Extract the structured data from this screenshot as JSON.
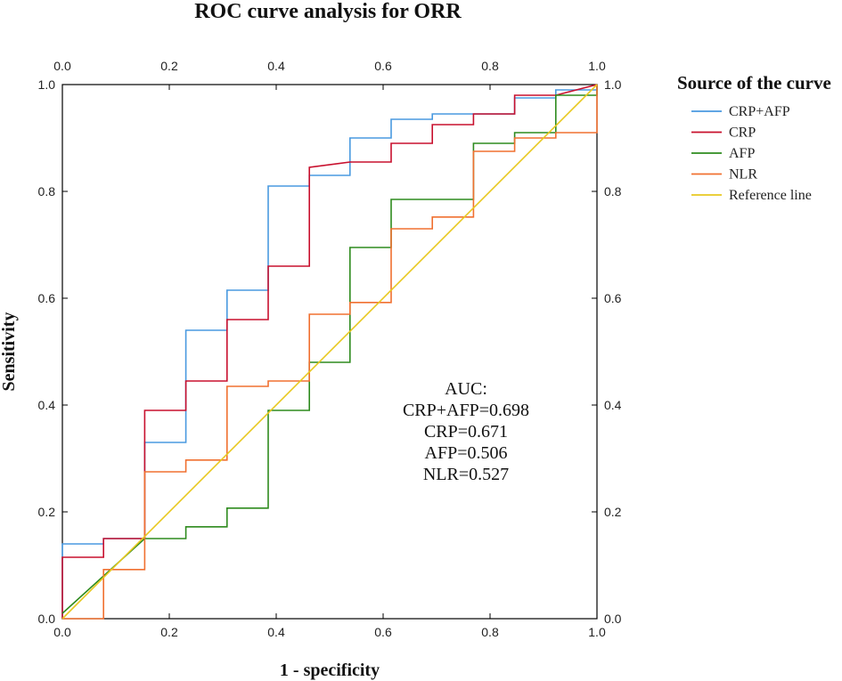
{
  "chart_data": {
    "type": "line",
    "title": "ROC curve analysis for ORR",
    "xlabel": "1 - specificity",
    "ylabel": "Sensitivity",
    "xlim": [
      0,
      1
    ],
    "ylim": [
      0,
      1
    ],
    "x_ticks": [
      "0.0",
      "0.2",
      "0.4",
      "0.6",
      "0.8",
      "1.0"
    ],
    "y_ticks": [
      "0.0",
      "0.2",
      "0.4",
      "0.6",
      "0.8",
      "1.0"
    ],
    "grid": false,
    "legend": {
      "title": "Source of the curve",
      "position": "right"
    },
    "annotation": {
      "lines": [
        "AUC:",
        "CRP+AFP=0.698",
        "CRP=0.671",
        "AFP=0.506",
        "NLR=0.527"
      ]
    },
    "series": [
      {
        "name": "CRP+AFP",
        "color": "#4a9ae0",
        "points": [
          [
            0,
            0
          ],
          [
            0,
            0.14
          ],
          [
            0.077,
            0.14
          ],
          [
            0.077,
            0.15
          ],
          [
            0.154,
            0.15
          ],
          [
            0.154,
            0.33
          ],
          [
            0.231,
            0.33
          ],
          [
            0.231,
            0.54
          ],
          [
            0.308,
            0.54
          ],
          [
            0.308,
            0.615
          ],
          [
            0.385,
            0.615
          ],
          [
            0.385,
            0.81
          ],
          [
            0.462,
            0.81
          ],
          [
            0.462,
            0.83
          ],
          [
            0.538,
            0.83
          ],
          [
            0.538,
            0.9
          ],
          [
            0.615,
            0.9
          ],
          [
            0.615,
            0.935
          ],
          [
            0.692,
            0.935
          ],
          [
            0.692,
            0.945
          ],
          [
            0.769,
            0.945
          ],
          [
            0.846,
            0.945
          ],
          [
            0.846,
            0.975
          ],
          [
            0.923,
            0.975
          ],
          [
            0.923,
            0.99
          ],
          [
            1,
            0.99
          ],
          [
            1,
            1
          ]
        ]
      },
      {
        "name": "CRP",
        "color": "#c8102e",
        "points": [
          [
            0,
            0
          ],
          [
            0,
            0.115
          ],
          [
            0.077,
            0.115
          ],
          [
            0.077,
            0.15
          ],
          [
            0.154,
            0.15
          ],
          [
            0.154,
            0.39
          ],
          [
            0.231,
            0.39
          ],
          [
            0.231,
            0.445
          ],
          [
            0.308,
            0.445
          ],
          [
            0.308,
            0.56
          ],
          [
            0.385,
            0.56
          ],
          [
            0.385,
            0.66
          ],
          [
            0.462,
            0.66
          ],
          [
            0.462,
            0.845
          ],
          [
            0.538,
            0.855
          ],
          [
            0.615,
            0.855
          ],
          [
            0.615,
            0.89
          ],
          [
            0.692,
            0.89
          ],
          [
            0.692,
            0.925
          ],
          [
            0.769,
            0.925
          ],
          [
            0.769,
            0.945
          ],
          [
            0.846,
            0.945
          ],
          [
            0.846,
            0.98
          ],
          [
            0.923,
            0.98
          ],
          [
            1,
            1
          ]
        ]
      },
      {
        "name": "AFP",
        "color": "#2e8b1e",
        "points": [
          [
            0,
            0.01
          ],
          [
            0.154,
            0.15
          ],
          [
            0.231,
            0.15
          ],
          [
            0.231,
            0.172
          ],
          [
            0.308,
            0.172
          ],
          [
            0.308,
            0.207
          ],
          [
            0.385,
            0.207
          ],
          [
            0.385,
            0.39
          ],
          [
            0.462,
            0.39
          ],
          [
            0.462,
            0.48
          ],
          [
            0.538,
            0.48
          ],
          [
            0.538,
            0.695
          ],
          [
            0.615,
            0.695
          ],
          [
            0.615,
            0.785
          ],
          [
            0.692,
            0.785
          ],
          [
            0.769,
            0.785
          ],
          [
            0.769,
            0.89
          ],
          [
            0.846,
            0.89
          ],
          [
            0.846,
            0.91
          ],
          [
            0.923,
            0.91
          ],
          [
            0.923,
            0.98
          ],
          [
            1,
            0.98
          ],
          [
            1,
            1
          ]
        ]
      },
      {
        "name": "NLR",
        "color": "#f07030",
        "points": [
          [
            0,
            0
          ],
          [
            0.077,
            0
          ],
          [
            0.077,
            0.092
          ],
          [
            0.154,
            0.092
          ],
          [
            0.154,
            0.275
          ],
          [
            0.231,
            0.275
          ],
          [
            0.231,
            0.297
          ],
          [
            0.308,
            0.297
          ],
          [
            0.308,
            0.435
          ],
          [
            0.385,
            0.435
          ],
          [
            0.385,
            0.445
          ],
          [
            0.462,
            0.445
          ],
          [
            0.462,
            0.57
          ],
          [
            0.538,
            0.57
          ],
          [
            0.538,
            0.592
          ],
          [
            0.615,
            0.592
          ],
          [
            0.615,
            0.73
          ],
          [
            0.692,
            0.73
          ],
          [
            0.692,
            0.752
          ],
          [
            0.769,
            0.752
          ],
          [
            0.769,
            0.875
          ],
          [
            0.846,
            0.875
          ],
          [
            0.846,
            0.9
          ],
          [
            0.923,
            0.9
          ],
          [
            0.923,
            0.91
          ],
          [
            1,
            0.91
          ],
          [
            1,
            1
          ]
        ]
      },
      {
        "name": "Reference line",
        "color": "#e8c820",
        "points": [
          [
            0,
            0
          ],
          [
            1,
            1
          ]
        ]
      }
    ]
  }
}
